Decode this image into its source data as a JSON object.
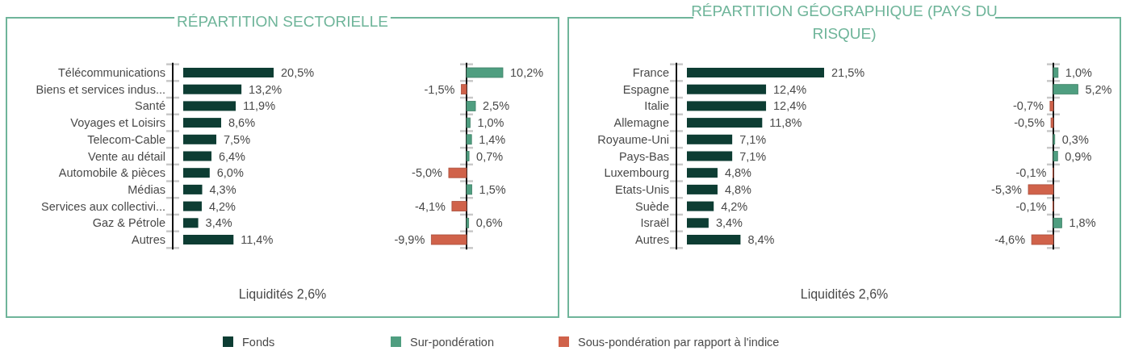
{
  "chart_data": [
    {
      "type": "bar",
      "orientation": "horizontal",
      "title": "RÉPARTITION SECTORIELLE",
      "annotations": [
        "Liquidités 2,6%"
      ],
      "legend": "bottom",
      "categories": [
        "Télécommunications",
        "Biens et services indus...",
        "Santé",
        "Voyages et Loisirs",
        "Telecom-Cable",
        "Vente au détail",
        "Automobile & pièces",
        "Médias",
        "Services aux collectivi...",
        "Gaz & Pétrole",
        "Autres"
      ],
      "series": [
        {
          "name": "Fonds",
          "color": "#0d3d33",
          "values": [
            20.5,
            13.2,
            11.9,
            8.6,
            7.5,
            6.4,
            6.0,
            4.3,
            4.2,
            3.4,
            11.4
          ],
          "value_labels": [
            "20,5%",
            "13,2%",
            "11,9%",
            "8,6%",
            "7,5%",
            "6,4%",
            "6,0%",
            "4,3%",
            "4,2%",
            "3,4%",
            "11,4%"
          ]
        }
      ]
    },
    {
      "type": "bar",
      "orientation": "horizontal",
      "legend": "bottom",
      "categories": [
        null,
        null,
        null,
        null,
        null,
        null,
        null,
        null,
        null,
        null,
        null
      ],
      "series": [
        {
          "name": "Sur-pondération",
          "color": "#4f9e80",
          "values": [
            10.2,
            null,
            2.5,
            1.0,
            1.4,
            0.7,
            null,
            1.5,
            null,
            0.6,
            null
          ],
          "value_labels": [
            "10,2%",
            null,
            "2,5%",
            "1,0%",
            "1,4%",
            "0,7%",
            null,
            "1,5%",
            null,
            "0,6%",
            null
          ]
        },
        {
          "name": "Sous-pondération par rapport à l'indice",
          "color": "#d0624a",
          "values": [
            null,
            -1.5,
            null,
            null,
            null,
            null,
            -5.0,
            null,
            -4.1,
            null,
            -9.9
          ],
          "value_labels": [
            null,
            "-1,5%",
            null,
            null,
            null,
            null,
            "-5,0%",
            null,
            "-4,1%",
            null,
            "-9,9%"
          ]
        }
      ]
    },
    {
      "type": "bar",
      "orientation": "horizontal",
      "title": "RÉPARTITION GÉOGRAPHIQUE (PAYS DU RISQUE)",
      "annotations": [
        "Liquidités 2,6%"
      ],
      "categories": [
        "France",
        "Espagne",
        "Italie",
        "Allemagne",
        "Royaume-Uni",
        "Pays-Bas",
        "Luxembourg",
        "Etats-Unis",
        "Suède",
        "Israël",
        "Autres"
      ],
      "series": [
        {
          "color": "#0d3d33",
          "values": [
            21.5,
            12.4,
            12.4,
            11.8,
            7.1,
            7.1,
            4.8,
            4.8,
            4.2,
            3.4,
            8.4
          ],
          "value_labels": [
            "21,5%",
            "12,4%",
            "12,4%",
            "11,8%",
            "7,1%",
            "7,1%",
            "4,8%",
            "4,8%",
            "4,2%",
            "3,4%",
            "8,4%"
          ]
        }
      ]
    },
    {
      "type": "bar",
      "orientation": "horizontal",
      "categories": [
        null,
        null,
        null,
        null,
        null,
        null,
        null,
        null,
        null,
        null,
        null
      ],
      "series": [
        {
          "color": "#4f9e80",
          "values": [
            1.0,
            5.2,
            null,
            null,
            0.3,
            0.9,
            null,
            null,
            null,
            1.8,
            null
          ],
          "value_labels": [
            "1,0%",
            "5,2%",
            null,
            null,
            "0,3%",
            "0,9%",
            null,
            null,
            null,
            "1,8%",
            null
          ]
        },
        {
          "color": "#d0624a",
          "values": [
            null,
            null,
            -0.7,
            -0.5,
            null,
            null,
            -0.1,
            -5.3,
            -0.1,
            null,
            -4.6
          ],
          "value_labels": [
            null,
            null,
            "-0,7%",
            "-0,5%",
            null,
            null,
            "-0,1%",
            "-5,3%",
            "-0,1%",
            null,
            "-4,6%"
          ]
        }
      ]
    }
  ]
}
